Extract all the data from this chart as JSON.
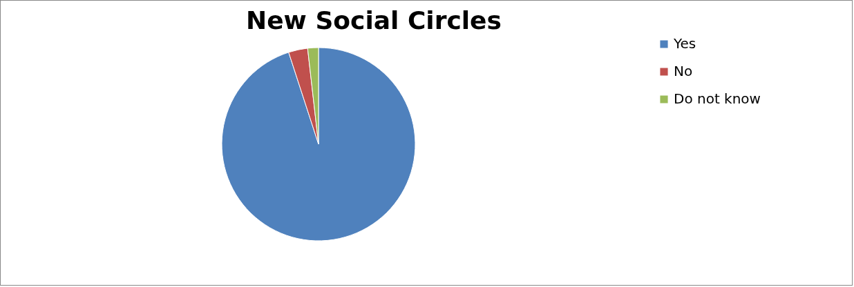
{
  "chart_data": {
    "type": "pie",
    "title": "New Social Circles",
    "categories": [
      "Yes",
      "No",
      "Do not know"
    ],
    "values": [
      95,
      3.2,
      1.8
    ],
    "colors": [
      "#4f81bd",
      "#c0504d",
      "#9bbb59"
    ],
    "legend": "right"
  }
}
